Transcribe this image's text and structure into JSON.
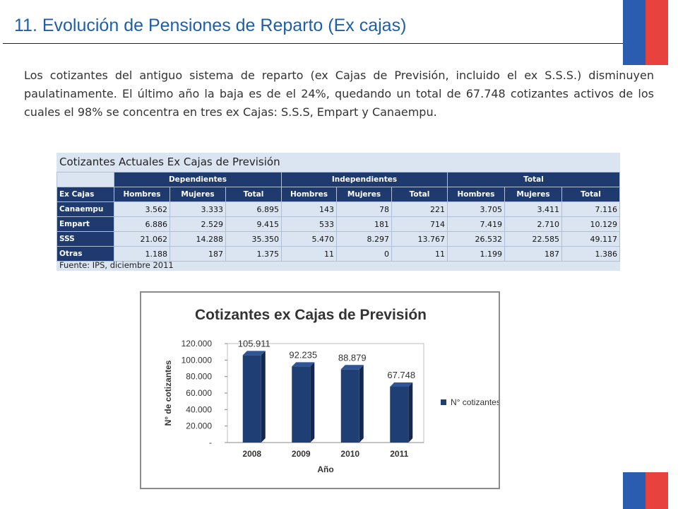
{
  "slide": {
    "title": "11. Evolución de Pensiones de Reparto (Ex cajas)",
    "intro": "Los cotizantes del antiguo sistema de reparto (ex Cajas de Previsión, incluido el ex S.S.S.) disminuyen paulatinamente. El último año la baja es de el 24%, quedando un total de 67.748 cotizantes activos de los cuales el 98% se concentra en tres ex Cajas: S.S.S, Empart y Canaempu.",
    "colors": {
      "title": "#1f5fa8",
      "flag_blue": "#2a5db0",
      "flag_red": "#e8423f",
      "header": "#1f3a6e",
      "panel": "#dbe5f1"
    }
  },
  "data_table": {
    "caption": "Cotizantes Actuales Ex Cajas de Previsión",
    "groups": [
      "Dependientes",
      "Independientes",
      "Total"
    ],
    "row_header": "Ex Cajas",
    "subheaders": [
      "Hombres",
      "Mujeres",
      "Total",
      "Hombres",
      "Mujeres",
      "Total",
      "Hombres",
      "Mujeres",
      "Total"
    ],
    "rows": [
      {
        "name": "Canaempu",
        "values": [
          "3.562",
          "3.333",
          "6.895",
          "143",
          "78",
          "221",
          "3.705",
          "3.411",
          "7.116"
        ]
      },
      {
        "name": "Empart",
        "values": [
          "6.886",
          "2.529",
          "9.415",
          "533",
          "181",
          "714",
          "7.419",
          "2.710",
          "10.129"
        ]
      },
      {
        "name": "SSS",
        "values": [
          "21.062",
          "14.288",
          "35.350",
          "5.470",
          "8.297",
          "13.767",
          "26.532",
          "22.585",
          "49.117"
        ]
      },
      {
        "name": "Otras",
        "values": [
          "1.188",
          "187",
          "1.375",
          "11",
          "0",
          "11",
          "1.199",
          "187",
          "1.386"
        ]
      }
    ],
    "source": "Fuente: IPS, diciembre 2011"
  },
  "chart_data": {
    "type": "bar",
    "title": "Cotizantes ex Cajas de Previsión",
    "xlabel": "Año",
    "ylabel": "N° de cotizantes",
    "categories": [
      "2008",
      "2009",
      "2010",
      "2011"
    ],
    "series": [
      {
        "name": "N° cotizantes",
        "values": [
          105911,
          92235,
          88879,
          67748
        ]
      }
    ],
    "data_labels": [
      "105.911",
      "92.235",
      "88.879",
      "67.748"
    ],
    "yticks": [
      {
        "value": 0,
        "label": "-"
      },
      {
        "value": 20000,
        "label": "20.000"
      },
      {
        "value": 40000,
        "label": "40.000"
      },
      {
        "value": 60000,
        "label": "60.000"
      },
      {
        "value": 80000,
        "label": "80.000"
      },
      {
        "value": 100000,
        "label": "100.000"
      },
      {
        "value": 120000,
        "label": "120.000"
      }
    ],
    "ylim": [
      0,
      120000
    ],
    "legend_position": "right",
    "bar_color": "#1f3f74"
  }
}
